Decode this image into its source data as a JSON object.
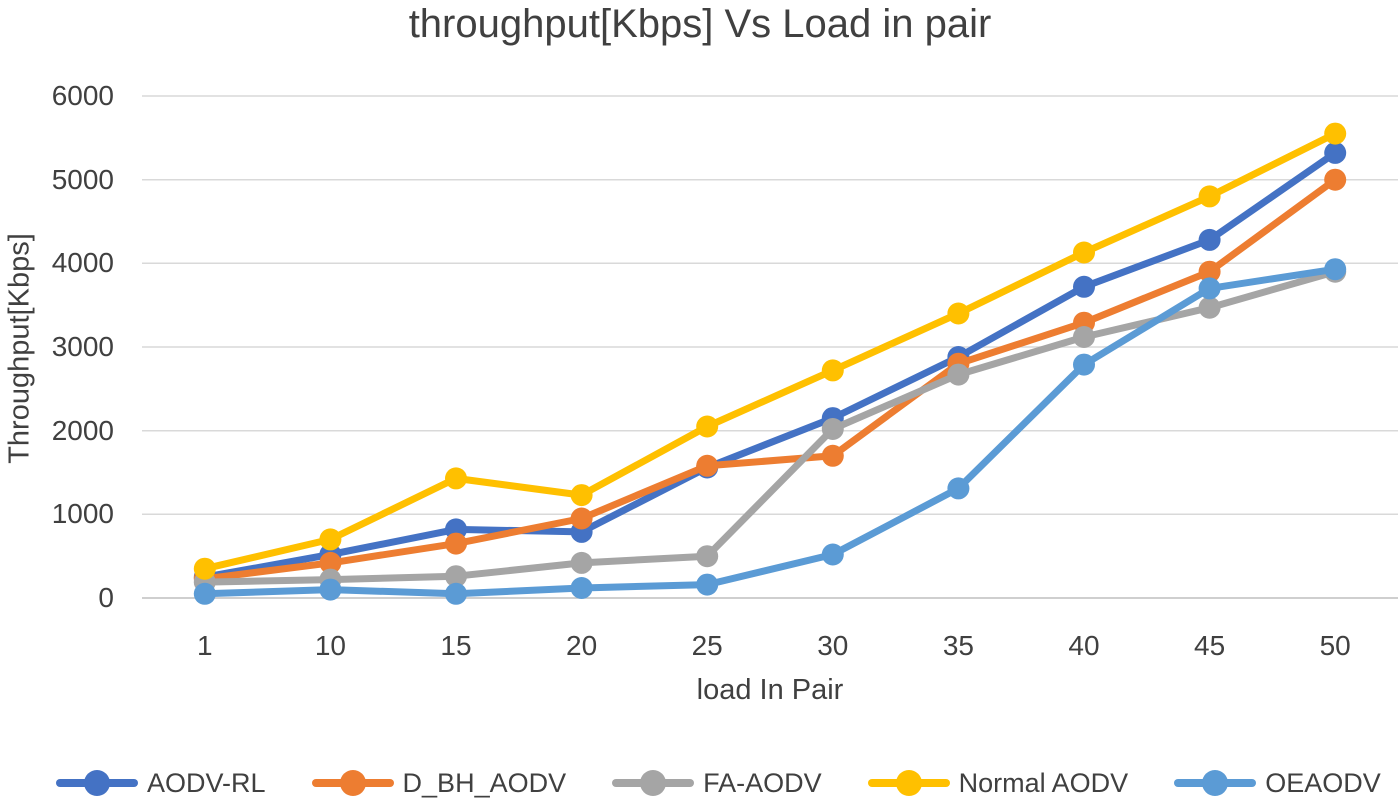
{
  "title": "throughput[Kbps] Vs Load in pair",
  "colors": {
    "background": "#FFFFFF",
    "text": "#404040",
    "gridline": "#D9D9D9",
    "axis_line": "#BFBFBF"
  },
  "chart_data": {
    "type": "line",
    "title": "throughput[Kbps] Vs Load in pair",
    "xlabel": "load In Pair",
    "ylabel": "Throughput[Kbps]",
    "categories": [
      "1",
      "10",
      "15",
      "20",
      "25",
      "30",
      "35",
      "40",
      "45",
      "50"
    ],
    "yticks": [
      "6000",
      "5000",
      "4000",
      "3000",
      "2000",
      "1000",
      "0"
    ],
    "ylim": [
      0,
      6000
    ],
    "ytick_interval": 1000,
    "grid": true,
    "legend_position": "bottom",
    "marker": "circle",
    "series": [
      {
        "name": "AODV-RL",
        "color": "#4472C4",
        "values": [
          250,
          520,
          820,
          790,
          1560,
          2150,
          2880,
          3720,
          4280,
          5320
        ]
      },
      {
        "name": "D_BH_AODV",
        "color": "#ED7D31",
        "values": [
          230,
          420,
          650,
          950,
          1580,
          1700,
          2800,
          3290,
          3900,
          5000
        ]
      },
      {
        "name": "FA-AODV",
        "color": "#A5A5A5",
        "values": [
          190,
          220,
          260,
          420,
          500,
          2020,
          2670,
          3120,
          3470,
          3900
        ]
      },
      {
        "name": "Normal AODV",
        "color": "#FFC000",
        "values": [
          350,
          700,
          1430,
          1230,
          2050,
          2720,
          3400,
          4130,
          4800,
          5550
        ]
      },
      {
        "name": "OEAODV",
        "color": "#5B9BD5",
        "values": [
          50,
          100,
          50,
          120,
          160,
          520,
          1310,
          2790,
          3700,
          3930
        ]
      }
    ]
  }
}
